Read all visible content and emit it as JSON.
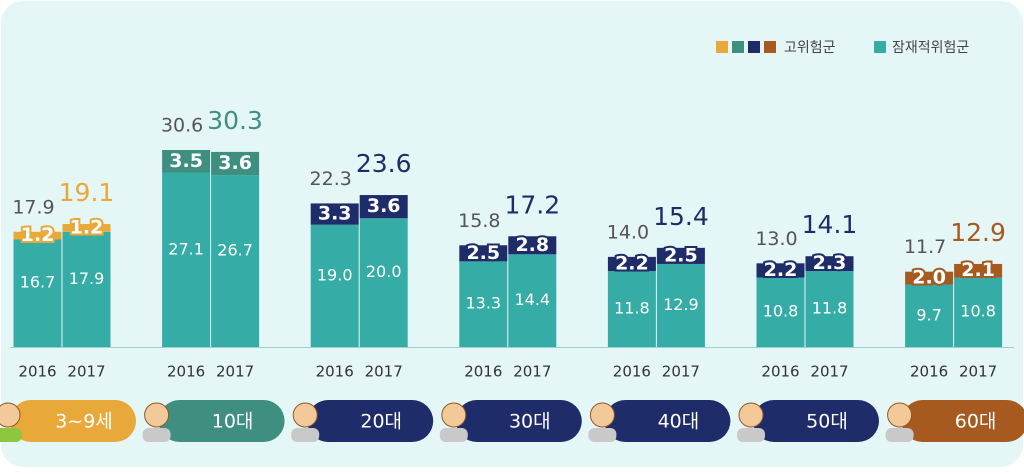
{
  "chart_data": {
    "type": "bar",
    "stacked": true,
    "categories": [
      "2016",
      "2017",
      "2016",
      "2017",
      "2016",
      "2017",
      "2016",
      "2017",
      "2016",
      "2017",
      "2016",
      "2017",
      "2016",
      "2017"
    ],
    "groups": [
      {
        "label": "3~9세",
        "color": "#e9a83a"
      },
      {
        "label": "10대",
        "color": "#3f8f80"
      },
      {
        "label": "20대",
        "color": "#1f2c6a"
      },
      {
        "label": "30대",
        "color": "#1f2c6a"
      },
      {
        "label": "40대",
        "color": "#1f2c6a"
      },
      {
        "label": "50대",
        "color": "#1f2c6a"
      },
      {
        "label": "60대",
        "color": "#a65a1f"
      }
    ],
    "series": [
      {
        "name": "잠재적위험군",
        "color": "#36aca7",
        "values": [
          16.7,
          17.9,
          27.1,
          26.7,
          19.0,
          20.0,
          13.3,
          14.4,
          11.8,
          12.9,
          10.8,
          11.8,
          9.7,
          10.8
        ],
        "value_labels": [
          "16.7",
          "17.9",
          "27.1",
          "26.7",
          "19.0",
          "20.0",
          "13.3",
          "14.4",
          "11.8",
          "12.9",
          "10.8",
          "11.8",
          "9.7",
          "10.8"
        ]
      },
      {
        "name": "고위험군",
        "values": [
          1.2,
          1.2,
          3.5,
          3.6,
          3.3,
          3.6,
          2.5,
          2.8,
          2.2,
          2.5,
          2.2,
          2.3,
          2.0,
          2.1
        ],
        "value_labels": [
          "1.2",
          "1.2",
          "3.5",
          "3.6",
          "3.3",
          "3.6",
          "2.5",
          "2.8",
          "2.2",
          "2.5",
          "2.2",
          "2.3",
          "2.0",
          "2.1"
        ]
      }
    ],
    "totals": {
      "values": [
        17.9,
        19.1,
        30.6,
        30.3,
        22.3,
        23.6,
        15.8,
        17.2,
        14.0,
        15.4,
        13.0,
        14.1,
        11.7,
        12.9
      ],
      "value_labels": [
        "17.9",
        "19.1",
        "30.6",
        "30.3",
        "22.3",
        "23.6",
        "15.8",
        "17.2",
        "14.0",
        "15.4",
        "13.0",
        "14.1",
        "11.7",
        "12.9"
      ]
    }
  }
}
